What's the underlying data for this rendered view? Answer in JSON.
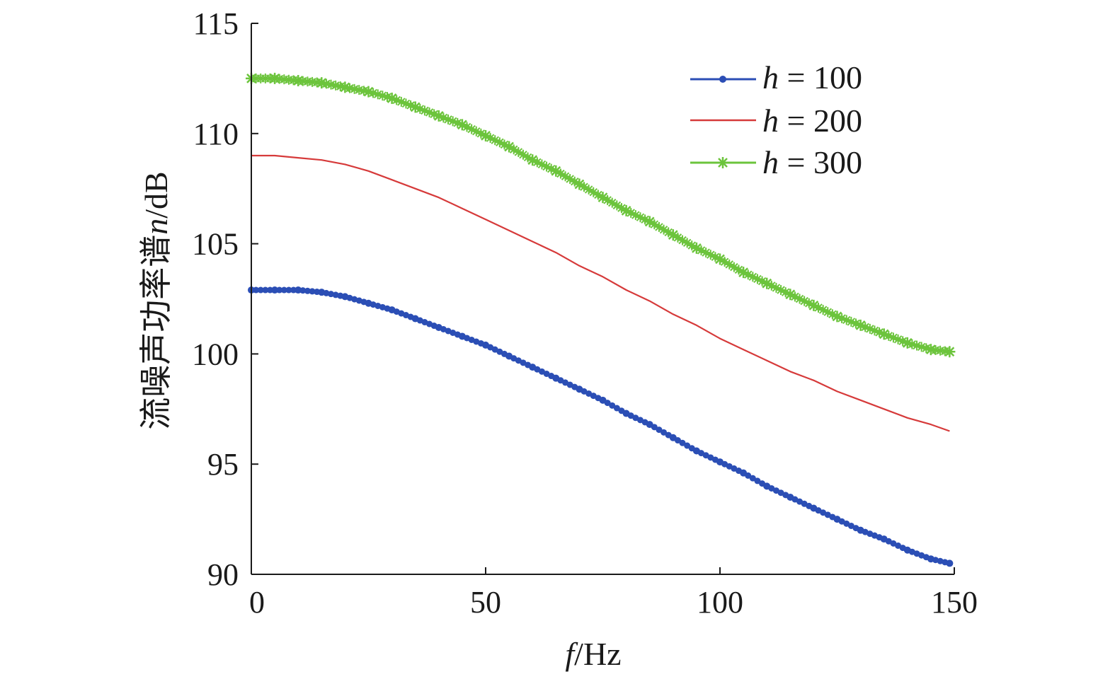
{
  "chart_data": {
    "type": "line",
    "title": "",
    "xlabel": "f/Hz",
    "xlabel_parts": {
      "var": "f",
      "unit": "/Hz"
    },
    "ylabel": "流噪声功率谱n/dB",
    "ylabel_parts": {
      "prefix": "流噪声功率谱",
      "var": "n",
      "unit": "/dB"
    },
    "xlim": [
      0,
      150
    ],
    "ylim": [
      90,
      115
    ],
    "xticks": [
      0,
      50,
      100,
      150
    ],
    "yticks": [
      90,
      95,
      100,
      105,
      110,
      115
    ],
    "xtick_labels": [
      "0",
      "50",
      "100",
      "150"
    ],
    "ytick_labels": [
      "90",
      "95",
      "100",
      "105",
      "110",
      "115"
    ],
    "grid": false,
    "legend_position": "top-right",
    "x": [
      0,
      5,
      10,
      15,
      20,
      25,
      30,
      35,
      40,
      45,
      50,
      55,
      60,
      65,
      70,
      75,
      80,
      85,
      90,
      95,
      100,
      105,
      110,
      115,
      120,
      125,
      130,
      135,
      140,
      145,
      149
    ],
    "series": [
      {
        "name": "h = 100",
        "name_parts": {
          "var": "h",
          "rest": " = 100"
        },
        "color": "#2b4eb5",
        "marker": "dot",
        "values": [
          102.9,
          102.9,
          102.9,
          102.8,
          102.6,
          102.3,
          102.0,
          101.6,
          101.2,
          100.8,
          100.4,
          99.9,
          99.4,
          98.9,
          98.4,
          97.9,
          97.3,
          96.8,
          96.2,
          95.6,
          95.1,
          94.6,
          94.0,
          93.5,
          93.0,
          92.5,
          92.0,
          91.6,
          91.1,
          90.7,
          90.5
        ]
      },
      {
        "name": "h = 200",
        "name_parts": {
          "var": "h",
          "rest": " = 200"
        },
        "color": "#d63a3a",
        "marker": "none",
        "values": [
          109.0,
          109.0,
          108.9,
          108.8,
          108.6,
          108.3,
          107.9,
          107.5,
          107.1,
          106.6,
          106.1,
          105.6,
          105.1,
          104.6,
          104.0,
          103.5,
          102.9,
          102.4,
          101.8,
          101.3,
          100.7,
          100.2,
          99.7,
          99.2,
          98.8,
          98.3,
          97.9,
          97.5,
          97.1,
          96.8,
          96.5
        ]
      },
      {
        "name": "h = 300",
        "name_parts": {
          "var": "h",
          "rest": " = 300"
        },
        "color": "#6cc43c",
        "marker": "star",
        "values": [
          112.5,
          112.5,
          112.4,
          112.3,
          112.1,
          111.9,
          111.6,
          111.2,
          110.8,
          110.4,
          109.9,
          109.4,
          108.8,
          108.3,
          107.7,
          107.1,
          106.5,
          106.0,
          105.4,
          104.8,
          104.3,
          103.7,
          103.2,
          102.7,
          102.2,
          101.7,
          101.3,
          100.9,
          100.5,
          100.2,
          100.1
        ]
      }
    ]
  }
}
